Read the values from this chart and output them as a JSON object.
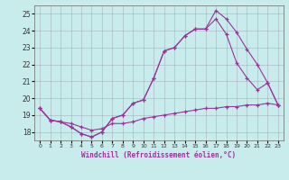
{
  "xlabel": "Windchill (Refroidissement éolien,°C)",
  "bg_color": "#c8ecec",
  "line_color": "#993399",
  "grid_color": "#9999aa",
  "xlim": [
    -0.5,
    23.5
  ],
  "ylim": [
    17.5,
    25.5
  ],
  "yticks": [
    18,
    19,
    20,
    21,
    22,
    23,
    24,
    25
  ],
  "xticks": [
    0,
    1,
    2,
    3,
    4,
    5,
    6,
    7,
    8,
    9,
    10,
    11,
    12,
    13,
    14,
    15,
    16,
    17,
    18,
    19,
    20,
    21,
    22,
    23
  ],
  "series1": [
    19.4,
    18.7,
    18.6,
    18.5,
    18.3,
    18.1,
    18.2,
    18.5,
    18.5,
    18.6,
    18.8,
    18.9,
    19.0,
    19.1,
    19.2,
    19.3,
    19.4,
    19.4,
    19.5,
    19.5,
    19.6,
    19.6,
    19.7,
    19.6
  ],
  "series2": [
    19.4,
    18.7,
    18.6,
    18.3,
    17.9,
    17.7,
    18.0,
    18.8,
    19.0,
    19.7,
    19.9,
    21.2,
    22.8,
    23.0,
    23.7,
    24.1,
    24.1,
    25.2,
    24.7,
    23.9,
    22.9,
    22.0,
    20.9,
    19.6
  ],
  "series3": [
    19.4,
    18.7,
    18.6,
    18.3,
    17.9,
    17.7,
    18.0,
    18.8,
    19.0,
    19.7,
    19.9,
    21.2,
    22.8,
    23.0,
    23.7,
    24.1,
    24.1,
    24.7,
    23.8,
    22.1,
    21.2,
    20.5,
    20.9,
    19.6
  ]
}
